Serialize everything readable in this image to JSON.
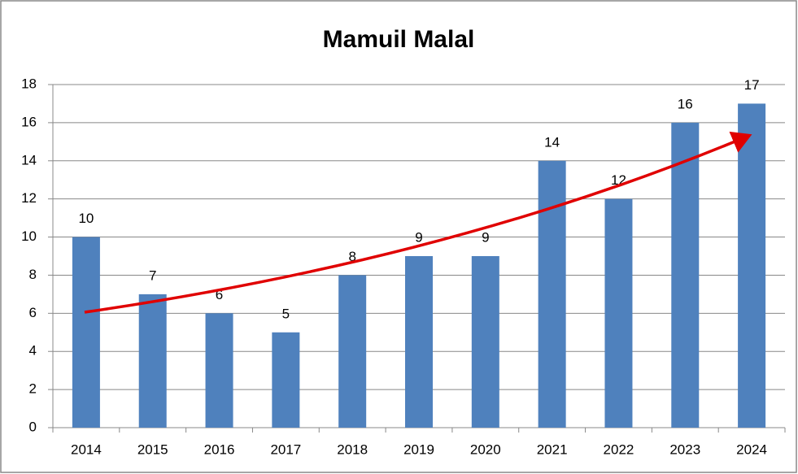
{
  "chart_data": {
    "type": "bar",
    "title": "Mamuil Malal",
    "categories": [
      "2014",
      "2015",
      "2016",
      "2017",
      "2018",
      "2019",
      "2020",
      "2021",
      "2022",
      "2023",
      "2024"
    ],
    "values": [
      10,
      7,
      6,
      5,
      8,
      9,
      9,
      14,
      12,
      16,
      17
    ],
    "color": "#4f81bd",
    "ylim": [
      0,
      18
    ],
    "yticks": [
      0,
      2,
      4,
      6,
      8,
      10,
      12,
      14,
      16,
      18
    ],
    "grid": true
  }
}
